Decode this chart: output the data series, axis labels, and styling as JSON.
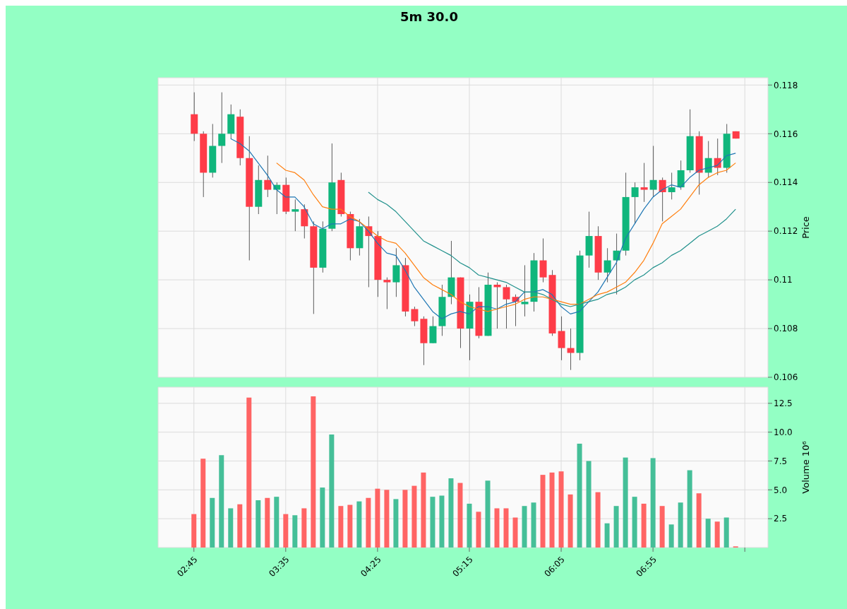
{
  "chart_data": [
    {
      "type": "candlestick",
      "title": "5m 30.0",
      "ylabel": "Price",
      "grid": true,
      "tick_labels": "y",
      "x": [
        2.75,
        2.8333,
        2.9167,
        3,
        3.0833,
        3.1667,
        3.25,
        3.3333,
        3.4167,
        3.5,
        3.5833,
        3.6667,
        3.75,
        3.8333,
        3.9167,
        4,
        4.0833,
        4.1667,
        4.25,
        4.3333,
        4.4167,
        4.5,
        4.5833,
        4.6667,
        4.75,
        4.8333,
        4.9167,
        5,
        5.0833,
        5.1667,
        5.25,
        5.3333,
        5.4167,
        5.5,
        5.5833,
        5.6667,
        5.75,
        5.8333,
        5.9167,
        6,
        6.0833,
        6.1667,
        6.25,
        6.3333,
        6.4167,
        6.5,
        6.5833,
        6.6667,
        6.75,
        6.8333,
        6.9167,
        7,
        7.0833,
        7.1667,
        7.25,
        7.3333,
        7.4167,
        7.5,
        7.5833,
        7.6667
      ],
      "xlim": [
        2.425,
        7.96
      ],
      "xticks": [
        {
          "value": 2.75,
          "label": null
        },
        {
          "value": 3.5833,
          "label": null
        },
        {
          "value": 4.4167,
          "label": null
        },
        {
          "value": 5.25,
          "label": null
        },
        {
          "value": 6.0833,
          "label": null
        },
        {
          "value": 6.9167,
          "label": null
        },
        {
          "value": 7.75,
          "label": null
        }
      ],
      "ylim": [
        0.106,
        0.1183
      ],
      "yticks": [
        0.106,
        0.108,
        0.11,
        0.112,
        0.114,
        0.116,
        0.118
      ],
      "ohlc": [
        [
          0.1168,
          0.1177,
          0.1157,
          0.116
        ],
        [
          0.116,
          0.1161,
          0.1134,
          0.1144
        ],
        [
          0.1144,
          0.1164,
          0.1142,
          0.1155
        ],
        [
          0.1155,
          0.1177,
          0.1148,
          0.116
        ],
        [
          0.116,
          0.1172,
          0.1158,
          0.1168
        ],
        [
          0.1167,
          0.117,
          0.1147,
          0.115
        ],
        [
          0.115,
          0.1159,
          0.1108,
          0.113
        ],
        [
          0.113,
          0.1147,
          0.1127,
          0.1141
        ],
        [
          0.1141,
          0.1151,
          0.1134,
          0.1137
        ],
        [
          0.1137,
          0.114,
          0.1127,
          0.1139
        ],
        [
          0.1139,
          0.1142,
          0.1127,
          0.1128
        ],
        [
          0.1128,
          0.1133,
          0.112,
          0.1129
        ],
        [
          0.1129,
          0.1131,
          0.1117,
          0.1122
        ],
        [
          0.1122,
          0.1124,
          0.1086,
          0.1105
        ],
        [
          0.1105,
          0.1124,
          0.1103,
          0.1121
        ],
        [
          0.1121,
          0.1156,
          0.112,
          0.114
        ],
        [
          0.1141,
          0.1144,
          0.1126,
          0.1127
        ],
        [
          0.1127,
          0.1128,
          0.1108,
          0.1113
        ],
        [
          0.1113,
          0.1125,
          0.111,
          0.1122
        ],
        [
          0.1122,
          0.1126,
          0.1097,
          0.1118
        ],
        [
          0.1118,
          0.112,
          0.1093,
          0.11
        ],
        [
          0.11,
          0.1101,
          0.1088,
          0.1099
        ],
        [
          0.1099,
          0.1113,
          0.1093,
          0.1106
        ],
        [
          0.1106,
          0.1109,
          0.1085,
          0.1087
        ],
        [
          0.1088,
          0.1089,
          0.1081,
          0.1083
        ],
        [
          0.1084,
          0.1085,
          0.1065,
          0.1074
        ],
        [
          0.1074,
          0.1085,
          0.1074,
          0.1081
        ],
        [
          0.1081,
          0.1098,
          0.1077,
          0.1093
        ],
        [
          0.1093,
          0.1116,
          0.109,
          0.1101
        ],
        [
          0.1101,
          0.1101,
          0.1072,
          0.108
        ],
        [
          0.108,
          0.1094,
          0.1067,
          0.1091
        ],
        [
          0.1091,
          0.1097,
          0.1076,
          0.1077
        ],
        [
          0.1077,
          0.1103,
          0.1077,
          0.1098
        ],
        [
          0.1098,
          0.1099,
          0.108,
          0.1097
        ],
        [
          0.1097,
          0.1098,
          0.108,
          0.1092
        ],
        [
          0.1093,
          0.1094,
          0.1081,
          0.1091
        ],
        [
          0.109,
          0.1106,
          0.1085,
          0.1091
        ],
        [
          0.1091,
          0.1111,
          0.1087,
          0.1108
        ],
        [
          0.1108,
          0.1117,
          0.1099,
          0.1101
        ],
        [
          0.1102,
          0.1104,
          0.1077,
          0.1078
        ],
        [
          0.1079,
          0.1085,
          0.1067,
          0.1072
        ],
        [
          0.1072,
          0.108,
          0.1063,
          0.107
        ],
        [
          0.107,
          0.1112,
          0.1067,
          0.111
        ],
        [
          0.111,
          0.1128,
          0.1105,
          0.1118
        ],
        [
          0.1118,
          0.1122,
          0.11,
          0.1103
        ],
        [
          0.1103,
          0.1113,
          0.1099,
          0.1108
        ],
        [
          0.1108,
          0.1119,
          0.1094,
          0.1112
        ],
        [
          0.1112,
          0.1144,
          0.111,
          0.1134
        ],
        [
          0.1134,
          0.114,
          0.1123,
          0.1138
        ],
        [
          0.1138,
          0.1148,
          0.1132,
          0.1137
        ],
        [
          0.1137,
          0.1155,
          0.1134,
          0.1141
        ],
        [
          0.1141,
          0.1142,
          0.1124,
          0.1136
        ],
        [
          0.1136,
          0.1144,
          0.1133,
          0.1138
        ],
        [
          0.1138,
          0.1149,
          0.1137,
          0.1145
        ],
        [
          0.1145,
          0.117,
          0.1144,
          0.1159
        ],
        [
          0.1159,
          0.1161,
          0.1135,
          0.1144
        ],
        [
          0.1144,
          0.1157,
          0.1142,
          0.115
        ],
        [
          0.115,
          0.1158,
          0.1143,
          0.1146
        ],
        [
          0.1146,
          0.1164,
          0.1144,
          0.116
        ],
        [
          0.1161,
          0.1161,
          0.1158,
          0.1158
        ]
      ],
      "colors": [
        "#fe3c48",
        "#fe3c48",
        "#10b67c",
        "#10b67c",
        "#10b67c",
        "#fe3c48",
        "#fe3c48",
        "#10b67c",
        "#fe3c48",
        "#10b67c",
        "#fe3c48",
        "#10b67c",
        "#fe3c48",
        "#fe3c48",
        "#10b67c",
        "#10b67c",
        "#fe3c48",
        "#fe3c48",
        "#10b67c",
        "#fe3c48",
        "#fe3c48",
        "#fe3c48",
        "#10b67c",
        "#fe3c48",
        "#fe3c48",
        "#fe3c48",
        "#10b67c",
        "#10b67c",
        "#10b67c",
        "#fe3c48",
        "#10b67c",
        "#fe3c48",
        "#10b67c",
        "#fe3c48",
        "#fe3c48",
        "#fe3c48",
        "#10b67c",
        "#10b67c",
        "#fe3c48",
        "#fe3c48",
        "#fe3c48",
        "#fe3c48",
        "#10b67c",
        "#10b67c",
        "#fe3c48",
        "#10b67c",
        "#10b67c",
        "#10b67c",
        "#10b67c",
        "#fe3c48",
        "#10b67c",
        "#fe3c48",
        "#10b67c",
        "#10b67c",
        "#10b67c",
        "#fe3c48",
        "#10b67c",
        "#fe3c48",
        "#10b67c",
        "#fe3c48"
      ],
      "series": [
        {
          "type": "line",
          "color": "#1f77b4",
          "values": [
            null,
            null,
            null,
            null,
            0.1158,
            0.1156,
            0.1153,
            0.1148,
            0.1143,
            0.1137,
            0.1134,
            0.1134,
            0.113,
            0.1123,
            0.1121,
            0.1123,
            0.1123,
            0.1125,
            0.1124,
            0.112,
            0.1115,
            0.1111,
            0.111,
            0.1104,
            0.1097,
            0.1092,
            0.1087,
            0.1084,
            0.1086,
            0.1087,
            0.1086,
            0.1089,
            0.1089,
            0.1088,
            0.109,
            0.1091,
            0.1095,
            0.1095,
            0.1096,
            0.1094,
            0.1089,
            0.1086,
            0.1087,
            0.1091,
            0.1095,
            0.1101,
            0.1107,
            0.1117,
            0.1123,
            0.1129,
            0.1134,
            0.1137,
            0.1139,
            0.1138,
            0.1142,
            0.1145,
            0.1146,
            0.1147,
            0.1151,
            0.1152
          ]
        },
        {
          "type": "line",
          "color": "#ff7f0e",
          "values": [
            null,
            null,
            null,
            null,
            null,
            null,
            null,
            null,
            null,
            0.1148,
            0.1145,
            0.1144,
            0.1141,
            0.1135,
            0.113,
            0.1129,
            0.1129,
            0.1126,
            0.1124,
            0.1121,
            0.1118,
            0.1116,
            0.1115,
            0.1111,
            0.1106,
            0.1101,
            0.1098,
            0.1096,
            0.1094,
            0.1091,
            0.1089,
            0.1088,
            0.1087,
            0.1088,
            0.1089,
            0.109,
            0.1092,
            0.1093,
            0.1093,
            0.1092,
            0.1091,
            0.109,
            0.109,
            0.1092,
            0.1094,
            0.1095,
            0.1097,
            0.1099,
            0.1103,
            0.1108,
            0.1115,
            0.1123,
            0.1126,
            0.1129,
            0.1134,
            0.1139,
            0.1142,
            0.1144,
            0.1145,
            0.1148
          ]
        },
        {
          "type": "line",
          "color": "#21918c",
          "values": [
            null,
            null,
            null,
            null,
            null,
            null,
            null,
            null,
            null,
            null,
            null,
            null,
            null,
            null,
            null,
            null,
            null,
            null,
            null,
            0.1136,
            0.1133,
            0.1131,
            0.1128,
            0.1124,
            0.112,
            0.1116,
            0.1114,
            0.1112,
            0.111,
            0.1107,
            0.1105,
            0.1102,
            0.1101,
            0.11,
            0.1099,
            0.1097,
            0.1095,
            0.1095,
            0.1094,
            0.1092,
            0.109,
            0.1089,
            0.109,
            0.1091,
            0.1092,
            0.1094,
            0.1095,
            0.1097,
            0.11,
            0.1102,
            0.1105,
            0.1107,
            0.111,
            0.1112,
            0.1115,
            0.1118,
            0.112,
            0.1122,
            0.1125,
            0.1129
          ]
        }
      ]
    },
    {
      "type": "bar",
      "ylabel": "Volume  10⁶",
      "grid": true,
      "x": [
        2.75,
        2.8333,
        2.9167,
        3,
        3.0833,
        3.1667,
        3.25,
        3.3333,
        3.4167,
        3.5,
        3.5833,
        3.6667,
        3.75,
        3.8333,
        3.9167,
        4,
        4.0833,
        4.1667,
        4.25,
        4.3333,
        4.4167,
        4.5,
        4.5833,
        4.6667,
        4.75,
        4.8333,
        4.9167,
        5,
        5.0833,
        5.1667,
        5.25,
        5.3333,
        5.4167,
        5.5,
        5.5833,
        5.6667,
        5.75,
        5.8333,
        5.9167,
        6,
        6.0833,
        6.1667,
        6.25,
        6.3333,
        6.4167,
        6.5,
        6.5833,
        6.6667,
        6.75,
        6.8333,
        6.9167,
        7,
        7.0833,
        7.1667,
        7.25,
        7.3333,
        7.4167,
        7.5,
        7.5833,
        7.6667
      ],
      "xlim": [
        2.425,
        7.96
      ],
      "xticks": [
        {
          "value": 2.75,
          "label": "02:45"
        },
        {
          "value": 3.5833,
          "label": "03:35"
        },
        {
          "value": 4.4167,
          "label": "04:25"
        },
        {
          "value": 5.25,
          "label": "05:15"
        },
        {
          "value": 6.0833,
          "label": "06:05"
        },
        {
          "value": 6.9167,
          "label": "06:55"
        },
        {
          "value": 7.75,
          "label": null
        }
      ],
      "ylim": [
        0,
        13.9
      ],
      "yticks": [
        2.5,
        {
          "value": 5,
          "label": "5.0"
        },
        7.5,
        {
          "value": 10,
          "label": "10.0"
        },
        12.5
      ],
      "values": [
        2.9,
        7.7,
        4.3,
        8.0,
        3.4,
        3.75,
        13.0,
        4.1,
        4.3,
        4.4,
        2.9,
        2.8,
        3.4,
        13.1,
        5.2,
        9.8,
        3.6,
        3.7,
        4.0,
        4.3,
        5.1,
        5.0,
        4.2,
        5.0,
        5.35,
        6.5,
        4.4,
        4.5,
        6.0,
        5.6,
        3.8,
        3.1,
        5.8,
        3.4,
        3.4,
        2.6,
        3.6,
        3.9,
        6.3,
        6.5,
        6.6,
        4.6,
        9.0,
        7.5,
        4.8,
        2.1,
        3.6,
        7.8,
        4.4,
        3.8,
        7.75,
        3.6,
        2.0,
        3.9,
        6.7,
        4.7,
        2.5,
        2.25,
        2.6,
        0.1
      ],
      "colors": [
        "#ff6464",
        "#ff6464",
        "#45bf98",
        "#45bf98",
        "#45bf98",
        "#ff6464",
        "#ff6464",
        "#45bf98",
        "#ff6464",
        "#45bf98",
        "#ff6464",
        "#45bf98",
        "#ff6464",
        "#ff6464",
        "#45bf98",
        "#45bf98",
        "#ff6464",
        "#ff6464",
        "#45bf98",
        "#ff6464",
        "#ff6464",
        "#ff6464",
        "#45bf98",
        "#ff6464",
        "#ff6464",
        "#ff6464",
        "#45bf98",
        "#45bf98",
        "#45bf98",
        "#ff6464",
        "#45bf98",
        "#ff6464",
        "#45bf98",
        "#ff6464",
        "#ff6464",
        "#ff6464",
        "#45bf98",
        "#45bf98",
        "#ff6464",
        "#ff6464",
        "#ff6464",
        "#ff6464",
        "#45bf98",
        "#45bf98",
        "#ff6464",
        "#45bf98",
        "#45bf98",
        "#45bf98",
        "#45bf98",
        "#ff6464",
        "#45bf98",
        "#ff6464",
        "#45bf98",
        "#45bf98",
        "#45bf98",
        "#ff6464",
        "#45bf98",
        "#ff6464",
        "#45bf98",
        "#ff6464"
      ]
    }
  ]
}
